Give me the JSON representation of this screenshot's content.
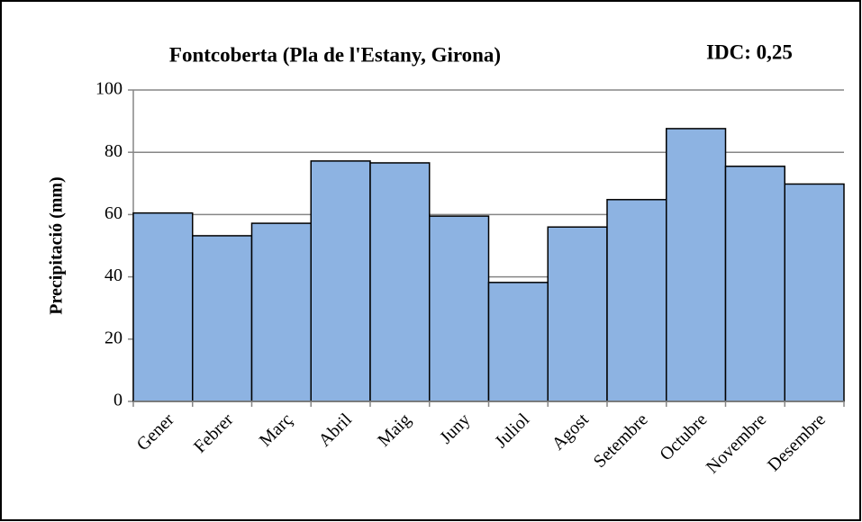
{
  "chart_data": {
    "type": "bar",
    "title": "Fontcoberta (Pla de l'Estany, Girona)",
    "annotation": "IDC: 0,25",
    "y_label": "Precipitació (mm)",
    "categories": [
      "Gener",
      "Febrer",
      "Març",
      "Abril",
      "Maig",
      "Juny",
      "Juliol",
      "Agost",
      "Setembre",
      "Octubre",
      "Novembre",
      "Desembre"
    ],
    "values": [
      60.5,
      53.2,
      57.2,
      77.2,
      76.6,
      59.5,
      38.2,
      56,
      64.8,
      87.6,
      75.5,
      69.8
    ],
    "color": "#8db3e2",
    "ylim": [
      0,
      100
    ],
    "yticks": [
      0,
      20,
      40,
      60,
      80,
      100
    ],
    "grid": true
  }
}
